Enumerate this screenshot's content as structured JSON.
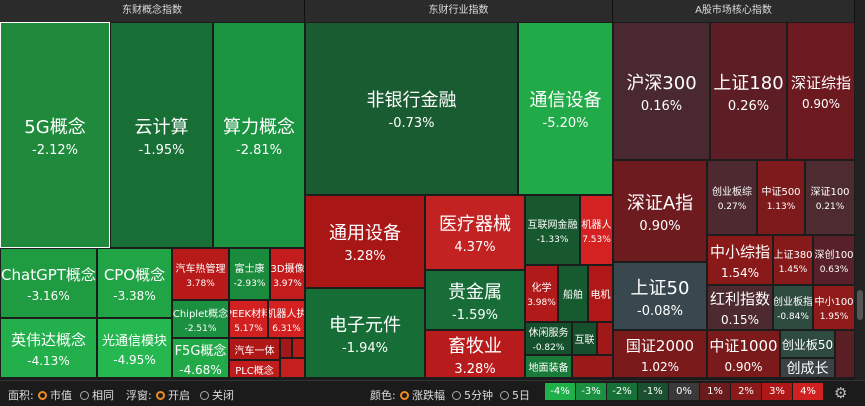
{
  "panels": [
    {
      "title": "东财概念指数",
      "tiles": [
        {
          "name": "5G概念",
          "change": "-2.12%"
        },
        {
          "name": "云计算",
          "change": "-1.95%"
        },
        {
          "name": "算力概念",
          "change": "-2.81%"
        },
        {
          "name": "ChatGPT概念",
          "change": "-3.16%"
        },
        {
          "name": "CPO概念",
          "change": "-3.38%"
        },
        {
          "name": "英伟达概念",
          "change": "-4.13%"
        },
        {
          "name": "光通信模块",
          "change": "-4.95%"
        },
        {
          "name": "汽车热管理",
          "change": "3.78%"
        },
        {
          "name": "富士康",
          "change": "-2.93%"
        },
        {
          "name": "3D摄像",
          "change": "3.97%"
        },
        {
          "name": "Chiplet概念",
          "change": "-2.51%"
        },
        {
          "name": "PEEK材料",
          "change": "5.17%"
        },
        {
          "name": "机器人执",
          "change": "6.31%"
        },
        {
          "name": "F5G概念",
          "change": "-4.68%"
        },
        {
          "name": "汽车一体"
        },
        {
          "name": "PLC概念"
        }
      ]
    },
    {
      "title": "东财行业指数",
      "tiles": [
        {
          "name": "非银行金融",
          "change": "-0.73%"
        },
        {
          "name": "通信设备",
          "change": "-5.20%"
        },
        {
          "name": "通用设备",
          "change": "3.28%"
        },
        {
          "name": "电子元件",
          "change": "-1.94%"
        },
        {
          "name": "医疗器械",
          "change": "4.37%"
        },
        {
          "name": "贵金属",
          "change": "-1.59%"
        },
        {
          "name": "畜牧业",
          "change": "3.28%"
        },
        {
          "name": "互联网金融",
          "change": "-1.33%"
        },
        {
          "name": "机器人",
          "change": "7.53%"
        },
        {
          "name": "化学",
          "change": "3.98%"
        },
        {
          "name": "船舶"
        },
        {
          "name": "电机"
        },
        {
          "name": "休闲服务",
          "change": "-0.82%"
        },
        {
          "name": "互联"
        },
        {
          "name": "地面装备"
        }
      ]
    },
    {
      "title": "A股市场核心指数",
      "tiles": [
        {
          "name": "沪深300",
          "change": "0.16%"
        },
        {
          "name": "上证180",
          "change": "0.26%"
        },
        {
          "name": "深证综指",
          "change": "0.90%"
        },
        {
          "name": "深证A指",
          "change": "0.90%"
        },
        {
          "name": "上证50",
          "change": "-0.08%"
        },
        {
          "name": "国证2000",
          "change": "1.02%"
        },
        {
          "name": "创业板综",
          "change": "0.27%"
        },
        {
          "name": "中证500",
          "change": "1.13%"
        },
        {
          "name": "深证100",
          "change": "0.21%"
        },
        {
          "name": "中小综指",
          "change": "1.54%"
        },
        {
          "name": "上证380",
          "change": "1.45%"
        },
        {
          "name": "深创100",
          "change": "0.63%"
        },
        {
          "name": "红利指数",
          "change": "0.15%"
        },
        {
          "name": "创业板指",
          "change": "-0.84%"
        },
        {
          "name": "中小100",
          "change": "1.95%"
        },
        {
          "name": "中证1000",
          "change": "0.90%"
        },
        {
          "name": "创业板50"
        },
        {
          "name": "创成长"
        }
      ]
    }
  ],
  "toolbar": {
    "area_label": "面积:",
    "area_options": [
      "市值",
      "相同"
    ],
    "popup_label": "浮窗:",
    "popup_options": [
      "开启",
      "关闭"
    ],
    "color_label": "颜色:",
    "color_options": [
      "涨跌幅",
      "5分钟",
      "5日"
    ],
    "legend": [
      "-4%",
      "-3%",
      "-2%",
      "-1%",
      "0%",
      "1%",
      "2%",
      "3%",
      "4%"
    ]
  }
}
